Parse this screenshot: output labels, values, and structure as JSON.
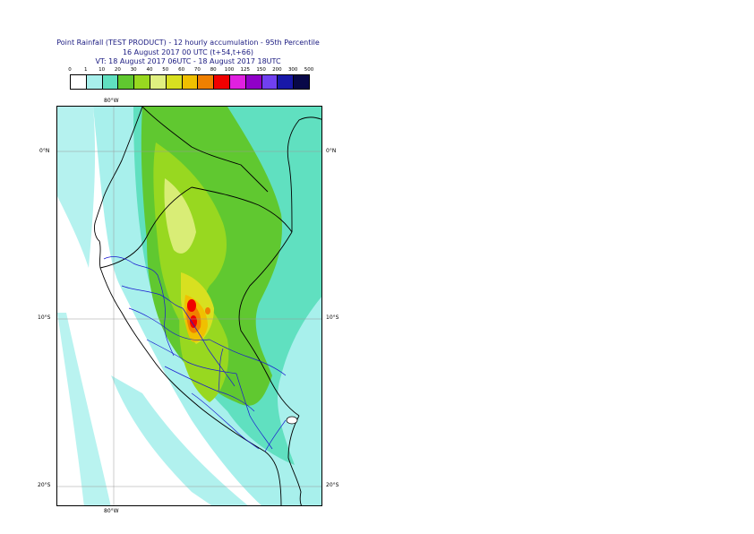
{
  "title": {
    "line1": "Point Rainfall (TEST PRODUCT) - 12 hourly accumulation - 95th Percentile",
    "line2": "16 August 2017 00 UTC (t+54,t+66)",
    "line3": "VT: 18 August 2017 06UTC - 18 August 2017 18UTC"
  },
  "legend": {
    "labels": [
      "0",
      "1",
      "10",
      "20",
      "30",
      "40",
      "50",
      "60",
      "70",
      "80",
      "100",
      "125",
      "150",
      "200",
      "300",
      "500"
    ],
    "colors": [
      "#ffffff",
      "#a8f0ec",
      "#60e0c0",
      "#60c830",
      "#98d820",
      "#e0f080",
      "#d8e020",
      "#f0c000",
      "#f08000",
      "#f00000",
      "#e020e0",
      "#9000c8",
      "#7040f0",
      "#1818a8",
      "#080848"
    ]
  },
  "axes": {
    "top_lon": "80°W",
    "bottom_lon": "80°W",
    "lat_left": [
      "0°N",
      "10°S",
      "20°S"
    ],
    "lat_right": [
      "0°N",
      "10°S",
      "20°S"
    ]
  }
}
